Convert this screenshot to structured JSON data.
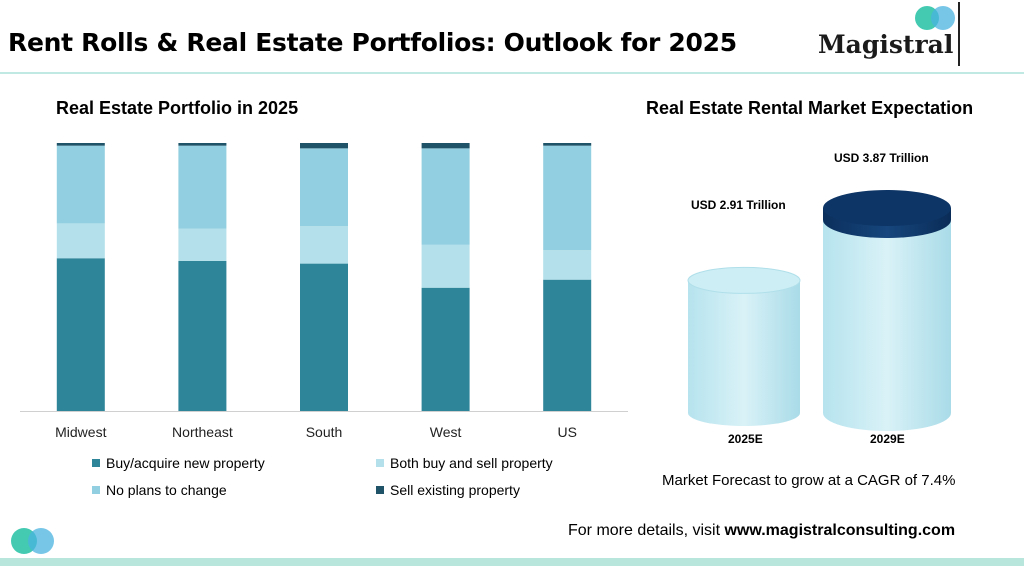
{
  "header": {
    "title": "Rent Rolls & Real Estate Portfolios: Outlook for 2025",
    "logo_text": "Magistral"
  },
  "colors": {
    "buy": "#2e8599",
    "both": "#b3e0ea",
    "no_change": "#92cfe0",
    "sell": "#1f5367",
    "cylinder_dark": "#0d3566"
  },
  "chart_data": [
    {
      "type": "bar",
      "stacked": true,
      "title": "Real Estate Portfolio in 2025",
      "categories": [
        "Midwest",
        "Northeast",
        "South",
        "West",
        "US"
      ],
      "series": [
        {
          "name": "Buy/acquire new property",
          "values": [
            57,
            56,
            55,
            46,
            49
          ]
        },
        {
          "name": "Both buy and sell property",
          "values": [
            13,
            12,
            14,
            16,
            11
          ]
        },
        {
          "name": "No plans to change",
          "values": [
            29,
            31,
            29,
            36,
            39
          ]
        },
        {
          "name": "Sell existing property",
          "values": [
            1,
            1,
            2,
            2,
            1
          ]
        }
      ],
      "ylim": [
        0,
        100
      ],
      "legend_position": "bottom",
      "grid": false
    },
    {
      "type": "bar",
      "style": "cylinder",
      "title": "Real Estate Rental Market Expectation",
      "categories": [
        "2025E",
        "2029E"
      ],
      "values": [
        2.91,
        3.87
      ],
      "data_labels": [
        "USD 2.91 Trillion",
        "USD 3.87 Trillion"
      ],
      "unit": "USD Trillion",
      "annotation": "Market Forecast to grow at a CAGR of 7.4%"
    }
  ],
  "footer": {
    "prefix": "For more details, visit ",
    "link": "www.magistralconsulting.com"
  }
}
